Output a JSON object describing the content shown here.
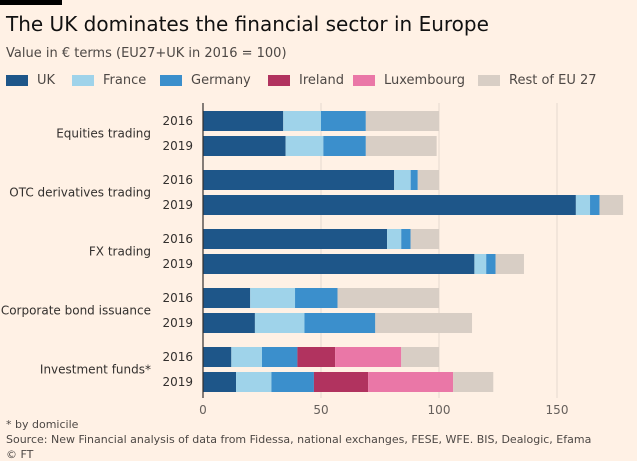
{
  "title": "The UK dominates the financial sector in Europe",
  "subtitle": "Value in € terms (EU27+UK in 2016 = 100)",
  "footnote": "* by domicile",
  "source": "Source: New Financial analysis of data from Fidessa, national exchanges, FESE, WFE. BIS, Dealogic, Efama",
  "credit": "© FT",
  "colors": {
    "UK": "#1e5689",
    "France": "#9fd3ea",
    "Germany": "#3b8fcc",
    "Ireland": "#b1335f",
    "Luxembourg": "#ea77a7",
    "Rest of EU 27": "#d8cec5",
    "grid": "#e6d9ce",
    "background": "#fff1e5"
  },
  "chart_data": {
    "type": "bar",
    "orientation": "horizontal",
    "stacked": true,
    "xlim": [
      0,
      180
    ],
    "xticks": [
      0,
      50,
      100,
      150
    ],
    "legend_position": "top",
    "series_names": [
      "UK",
      "France",
      "Germany",
      "Ireland",
      "Luxembourg",
      "Rest of EU 27"
    ],
    "groups": [
      {
        "label": "Equities trading",
        "rows": [
          {
            "year": "2016",
            "values": [
              34,
              16,
              19,
              0,
              0,
              31
            ]
          },
          {
            "year": "2019",
            "values": [
              35,
              16,
              18,
              0,
              0,
              30
            ]
          }
        ]
      },
      {
        "label": "OTC derivatives trading",
        "rows": [
          {
            "year": "2016",
            "values": [
              81,
              7,
              3,
              0,
              0,
              9
            ]
          },
          {
            "year": "2019",
            "values": [
              158,
              6,
              4,
              0,
              0,
              10
            ]
          }
        ]
      },
      {
        "label": "FX trading",
        "rows": [
          {
            "year": "2016",
            "values": [
              78,
              6,
              4,
              0,
              0,
              12
            ]
          },
          {
            "year": "2019",
            "values": [
              115,
              5,
              4,
              0,
              0,
              12
            ]
          }
        ]
      },
      {
        "label": "Corporate bond issuance",
        "rows": [
          {
            "year": "2016",
            "values": [
              20,
              19,
              18,
              0,
              0,
              43
            ]
          },
          {
            "year": "2019",
            "values": [
              22,
              21,
              30,
              0,
              0,
              41
            ]
          }
        ]
      },
      {
        "label": "Investment funds*",
        "rows": [
          {
            "year": "2016",
            "values": [
              12,
              13,
              15,
              16,
              28,
              16
            ]
          },
          {
            "year": "2019",
            "values": [
              14,
              15,
              18,
              23,
              36,
              17
            ]
          }
        ]
      }
    ]
  }
}
